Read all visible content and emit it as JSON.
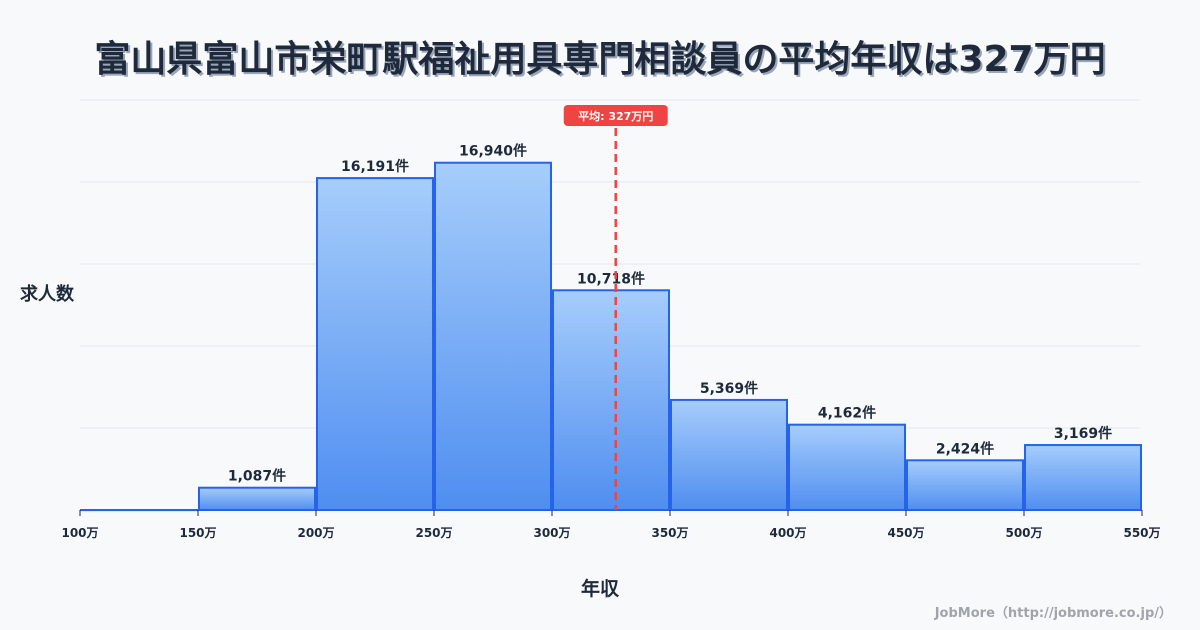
{
  "title": "富山県富山市栄町駅福祉用具専門相談員の平均年収は327万円",
  "y_axis_label": "求人数",
  "x_axis_label": "年収",
  "credit": "JobMore（http://jobmore.co.jp/）",
  "average_badge": "平均: 327万円",
  "colors": {
    "bar_top": "#a6cdfb",
    "bar_bottom": "#4f8ef0",
    "bar_border": "#2563eb",
    "average_line": "#ef4444",
    "grid": "#e5e7eb",
    "text": "#1e293b"
  },
  "chart_data": {
    "type": "bar",
    "title": "富山県富山市栄町駅福祉用具専門相談員の平均年収は327万円",
    "xlabel": "年収",
    "ylabel": "求人数",
    "x_ticks": [
      "100万",
      "150万",
      "200万",
      "250万",
      "300万",
      "350万",
      "400万",
      "450万",
      "500万",
      "550万"
    ],
    "categories": [
      "100-150万",
      "150-200万",
      "200-250万",
      "250-300万",
      "300-350万",
      "350-400万",
      "400-450万",
      "450-500万",
      "500-550万"
    ],
    "values": [
      0,
      1087,
      16191,
      16940,
      10718,
      5369,
      4162,
      2424,
      3169
    ],
    "value_labels": [
      "",
      "1,087件",
      "16,191件",
      "16,940件",
      "10,718件",
      "5,369件",
      "4,162件",
      "2,424件",
      "3,169件"
    ],
    "ylim": [
      0,
      20000
    ],
    "grid": true,
    "average": 327,
    "average_label": "平均: 327万円"
  }
}
